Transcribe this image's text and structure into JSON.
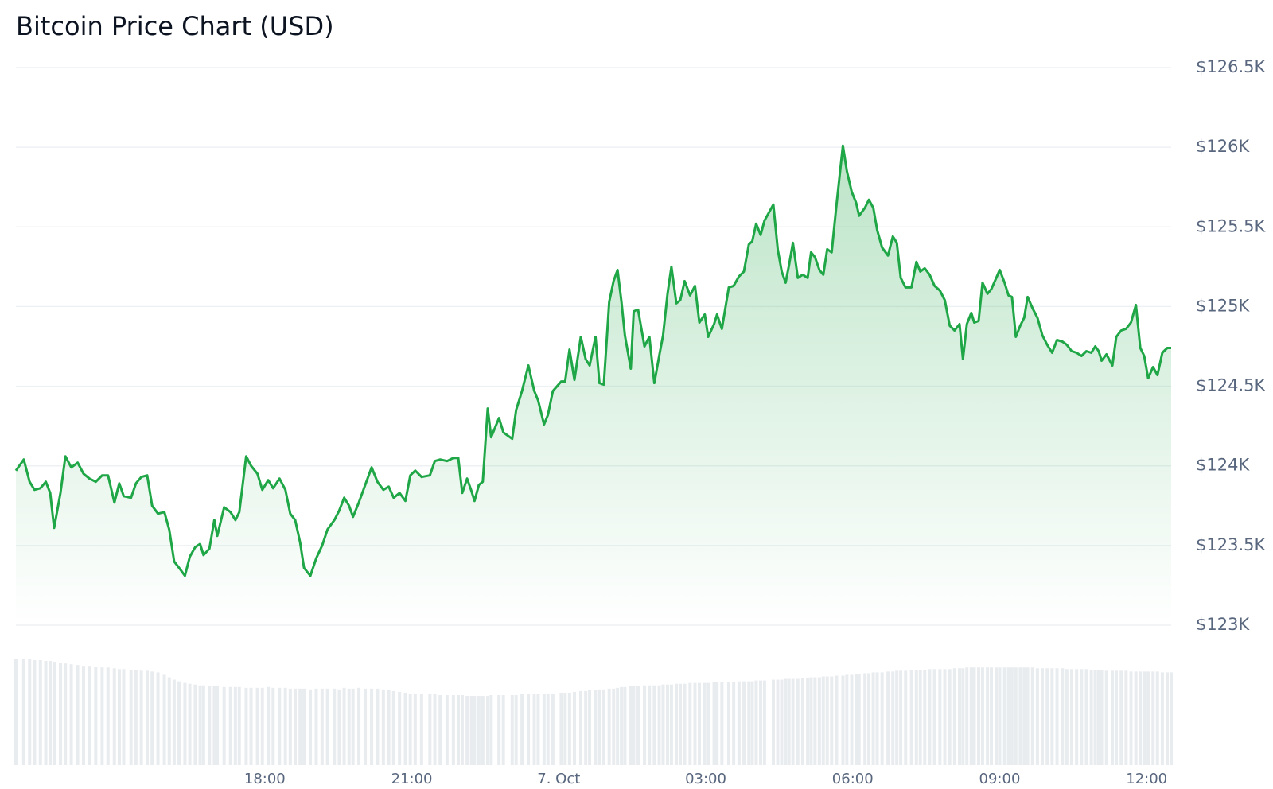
{
  "chart_data": {
    "type": "line",
    "title": "Bitcoin Price Chart (USD)",
    "x": [
      12.92,
      13.08,
      13.2,
      13.3,
      13.42,
      13.53,
      13.62,
      13.7,
      13.83,
      13.93,
      14.05,
      14.18,
      14.3,
      14.42,
      14.55,
      14.68,
      14.8,
      14.93,
      15.03,
      15.12,
      15.27,
      15.37,
      15.48,
      15.6,
      15.7,
      15.82,
      15.95,
      16.05,
      16.15,
      16.25,
      16.37,
      16.47,
      16.58,
      16.68,
      16.75,
      16.87,
      16.97,
      17.03,
      17.17,
      17.3,
      17.4,
      17.48,
      17.62,
      17.72,
      17.85,
      17.95,
      18.07,
      18.17,
      18.3,
      18.42,
      18.52,
      18.62,
      18.72,
      18.8,
      18.93,
      19.05,
      19.17,
      19.28,
      19.42,
      19.52,
      19.62,
      19.72,
      19.8,
      19.92,
      20.05,
      20.18,
      20.3,
      20.42,
      20.53,
      20.63,
      20.75,
      20.87,
      20.97,
      21.07,
      21.2,
      21.37,
      21.47,
      21.58,
      21.72,
      21.85,
      21.95,
      22.03,
      22.13,
      22.22,
      22.28,
      22.37,
      22.45,
      22.55,
      22.62,
      22.78,
      22.87,
      23.05,
      23.13,
      23.25,
      23.38,
      23.5,
      23.58,
      23.7,
      23.78,
      23.88,
      24.05,
      24.13,
      24.22,
      24.32,
      24.45,
      24.55,
      24.63,
      24.75,
      24.83,
      24.92,
      25.03,
      25.12,
      25.2,
      25.28,
      25.35,
      25.47,
      25.53,
      25.62,
      25.75,
      25.85,
      25.95,
      26.05,
      26.13,
      26.22,
      26.3,
      26.4,
      26.48,
      26.57,
      26.68,
      26.78,
      26.87,
      26.98,
      27.05,
      27.17,
      27.23,
      27.33,
      27.47,
      27.57,
      27.68,
      27.78,
      27.88,
      27.95,
      28.03,
      28.12,
      28.2,
      28.38,
      28.47,
      28.55,
      28.63,
      28.7,
      28.78,
      28.88,
      28.98,
      29.08,
      29.15,
      29.23,
      29.32,
      29.4,
      29.48,
      29.57,
      29.67,
      29.8,
      29.88,
      29.98,
      30.07,
      30.13,
      30.25,
      30.33,
      30.42,
      30.5,
      30.6,
      30.72,
      30.82,
      30.9,
      30.98,
      31.08,
      31.2,
      31.3,
      31.38,
      31.47,
      31.57,
      31.67,
      31.78,
      31.88,
      31.98,
      32.08,
      32.18,
      32.25,
      32.33,
      32.42,
      32.48,
      32.57,
      32.65,
      32.75,
      32.83,
      32.93,
      33.0,
      33.1,
      33.18,
      33.25,
      33.33,
      33.42,
      33.5,
      33.57,
      33.67,
      33.77,
      33.87,
      33.97,
      34.07,
      34.17,
      34.28,
      34.37,
      34.47,
      34.57,
      34.67,
      34.77,
      34.87,
      34.95,
      35.02,
      35.08,
      35.18,
      35.3,
      35.38,
      35.48,
      35.58,
      35.68,
      35.78,
      35.87,
      35.95,
      36.03,
      36.13,
      36.22,
      36.32,
      36.42,
      36.5
    ],
    "values": [
      123970,
      124040,
      123900,
      123850,
      123860,
      123900,
      123830,
      123610,
      123830,
      124060,
      123990,
      124020,
      123950,
      123920,
      123900,
      123940,
      123940,
      123770,
      123890,
      123810,
      123800,
      123890,
      123930,
      123940,
      123750,
      123700,
      123710,
      123600,
      123400,
      123360,
      123310,
      123430,
      123490,
      123510,
      123440,
      123480,
      123660,
      123560,
      123740,
      123710,
      123660,
      123710,
      124060,
      124000,
      123950,
      123850,
      123910,
      123860,
      123920,
      123850,
      123700,
      123660,
      123520,
      123360,
      123310,
      123420,
      123500,
      123600,
      123660,
      123720,
      123800,
      123750,
      123680,
      123770,
      123880,
      123990,
      123900,
      123850,
      123870,
      123800,
      123830,
      123780,
      123940,
      123970,
      123930,
      123940,
      124030,
      124040,
      124030,
      124050,
      124050,
      123830,
      123920,
      123840,
      123780,
      123880,
      123900,
      124360,
      124180,
      124300,
      124210,
      124170,
      124350,
      124470,
      124630,
      124470,
      124410,
      124260,
      124320,
      124470,
      124530,
      124530,
      124730,
      124540,
      124810,
      124670,
      124630,
      124810,
      124520,
      124510,
      125030,
      125160,
      125230,
      125030,
      124820,
      124610,
      124970,
      124980,
      124750,
      124810,
      124520,
      124690,
      124820,
      125080,
      125250,
      125020,
      125040,
      125160,
      125070,
      125130,
      124900,
      124950,
      124810,
      124890,
      124950,
      124860,
      125120,
      125130,
      125190,
      125220,
      125390,
      125410,
      125520,
      125450,
      125540,
      125640,
      125360,
      125220,
      125150,
      125260,
      125400,
      125180,
      125200,
      125180,
      125340,
      125310,
      125230,
      125200,
      125360,
      125340,
      125640,
      126010,
      125850,
      125720,
      125650,
      125570,
      125620,
      125670,
      125620,
      125480,
      125370,
      125320,
      125440,
      125400,
      125180,
      125120,
      125120,
      125280,
      125220,
      125240,
      125200,
      125130,
      125100,
      125040,
      124880,
      124850,
      124890,
      124670,
      124890,
      124960,
      124900,
      124910,
      125150,
      125080,
      125110,
      125180,
      125230,
      125150,
      125070,
      125060,
      124810,
      124880,
      124930,
      125060,
      124990,
      124930,
      124820,
      124760,
      124710,
      124790,
      124780,
      124760,
      124720,
      124710,
      124690,
      124720,
      124710,
      124750,
      124720,
      124660,
      124700,
      124630,
      124810,
      124850,
      124860,
      124900,
      125010,
      124740,
      124690,
      124550,
      124620,
      124570,
      124710,
      124740,
      124740
    ],
    "volume": [
      130,
      131,
      130,
      129,
      129,
      128,
      128,
      127,
      126,
      125,
      124,
      123,
      122,
      122,
      121,
      120,
      120,
      119,
      118,
      118,
      117,
      117,
      116,
      116,
      115,
      114,
      111,
      108,
      105,
      103,
      101,
      100,
      99,
      98,
      98,
      97,
      97,
      97,
      96,
      96,
      96,
      96,
      95,
      95,
      95,
      95,
      96,
      95,
      95,
      95,
      94,
      94,
      94,
      94,
      93,
      94,
      94,
      94,
      94,
      93,
      95,
      94,
      94,
      95,
      94,
      94,
      94,
      93,
      92,
      91,
      90,
      89,
      88,
      88,
      87,
      87,
      87,
      86,
      86,
      86,
      86,
      86,
      85,
      85,
      85,
      85,
      85,
      85,
      86,
      86,
      86,
      86,
      86,
      87,
      87,
      87,
      87,
      88,
      88,
      88,
      89,
      89,
      89,
      90,
      91,
      91,
      92,
      92,
      93,
      93,
      94,
      94,
      95,
      96,
      96,
      97,
      97,
      97,
      98,
      98,
      98,
      98,
      99,
      99,
      99,
      100,
      100,
      100,
      101,
      101,
      101,
      101,
      101,
      102,
      102,
      102,
      102,
      102,
      103,
      103,
      103,
      103,
      104,
      104,
      104,
      105,
      105,
      105,
      106,
      106,
      106,
      106,
      107,
      107,
      108,
      108,
      108,
      109,
      109,
      109,
      110,
      110,
      111,
      111,
      112,
      112,
      113,
      113,
      114,
      114,
      114,
      115,
      115,
      116,
      116,
      116,
      117,
      117,
      117,
      117,
      118,
      118,
      118,
      118,
      118,
      119,
      119,
      119,
      120,
      120,
      120,
      120,
      120,
      120,
      120,
      120,
      120,
      120,
      120,
      120,
      120,
      120,
      120,
      120,
      120,
      119,
      119,
      119,
      119,
      119,
      119,
      118,
      118,
      118,
      118,
      118,
      117,
      117,
      117,
      117,
      116,
      116,
      116,
      116,
      116,
      115,
      115,
      115,
      115,
      115,
      115,
      115,
      114,
      114,
      114
    ],
    "color": "#1fa646",
    "volume_color": "#e9ecef",
    "xlim": [
      12.92,
      36.5
    ],
    "xticks": [
      {
        "value": 18,
        "label": "18:00"
      },
      {
        "value": 21,
        "label": "21:00"
      },
      {
        "value": 24,
        "label": "7. Oct"
      },
      {
        "value": 27,
        "label": "03:00"
      },
      {
        "value": 30,
        "label": "06:00"
      },
      {
        "value": 33,
        "label": "09:00"
      },
      {
        "value": 36,
        "label": "12:00"
      }
    ],
    "ylim": [
      123000,
      126500
    ],
    "yticks": [
      {
        "value": 123000,
        "label": "$123K"
      },
      {
        "value": 123500,
        "label": "$123.5K"
      },
      {
        "value": 124000,
        "label": "$124K"
      },
      {
        "value": 124500,
        "label": "$124.5K"
      },
      {
        "value": 125000,
        "label": "$125K"
      },
      {
        "value": 125500,
        "label": "$125.5K"
      },
      {
        "value": 126000,
        "label": "$126K"
      },
      {
        "value": 126500,
        "label": "$126.5K"
      }
    ],
    "y2lim": [
      0,
      130
    ],
    "grid": true
  }
}
